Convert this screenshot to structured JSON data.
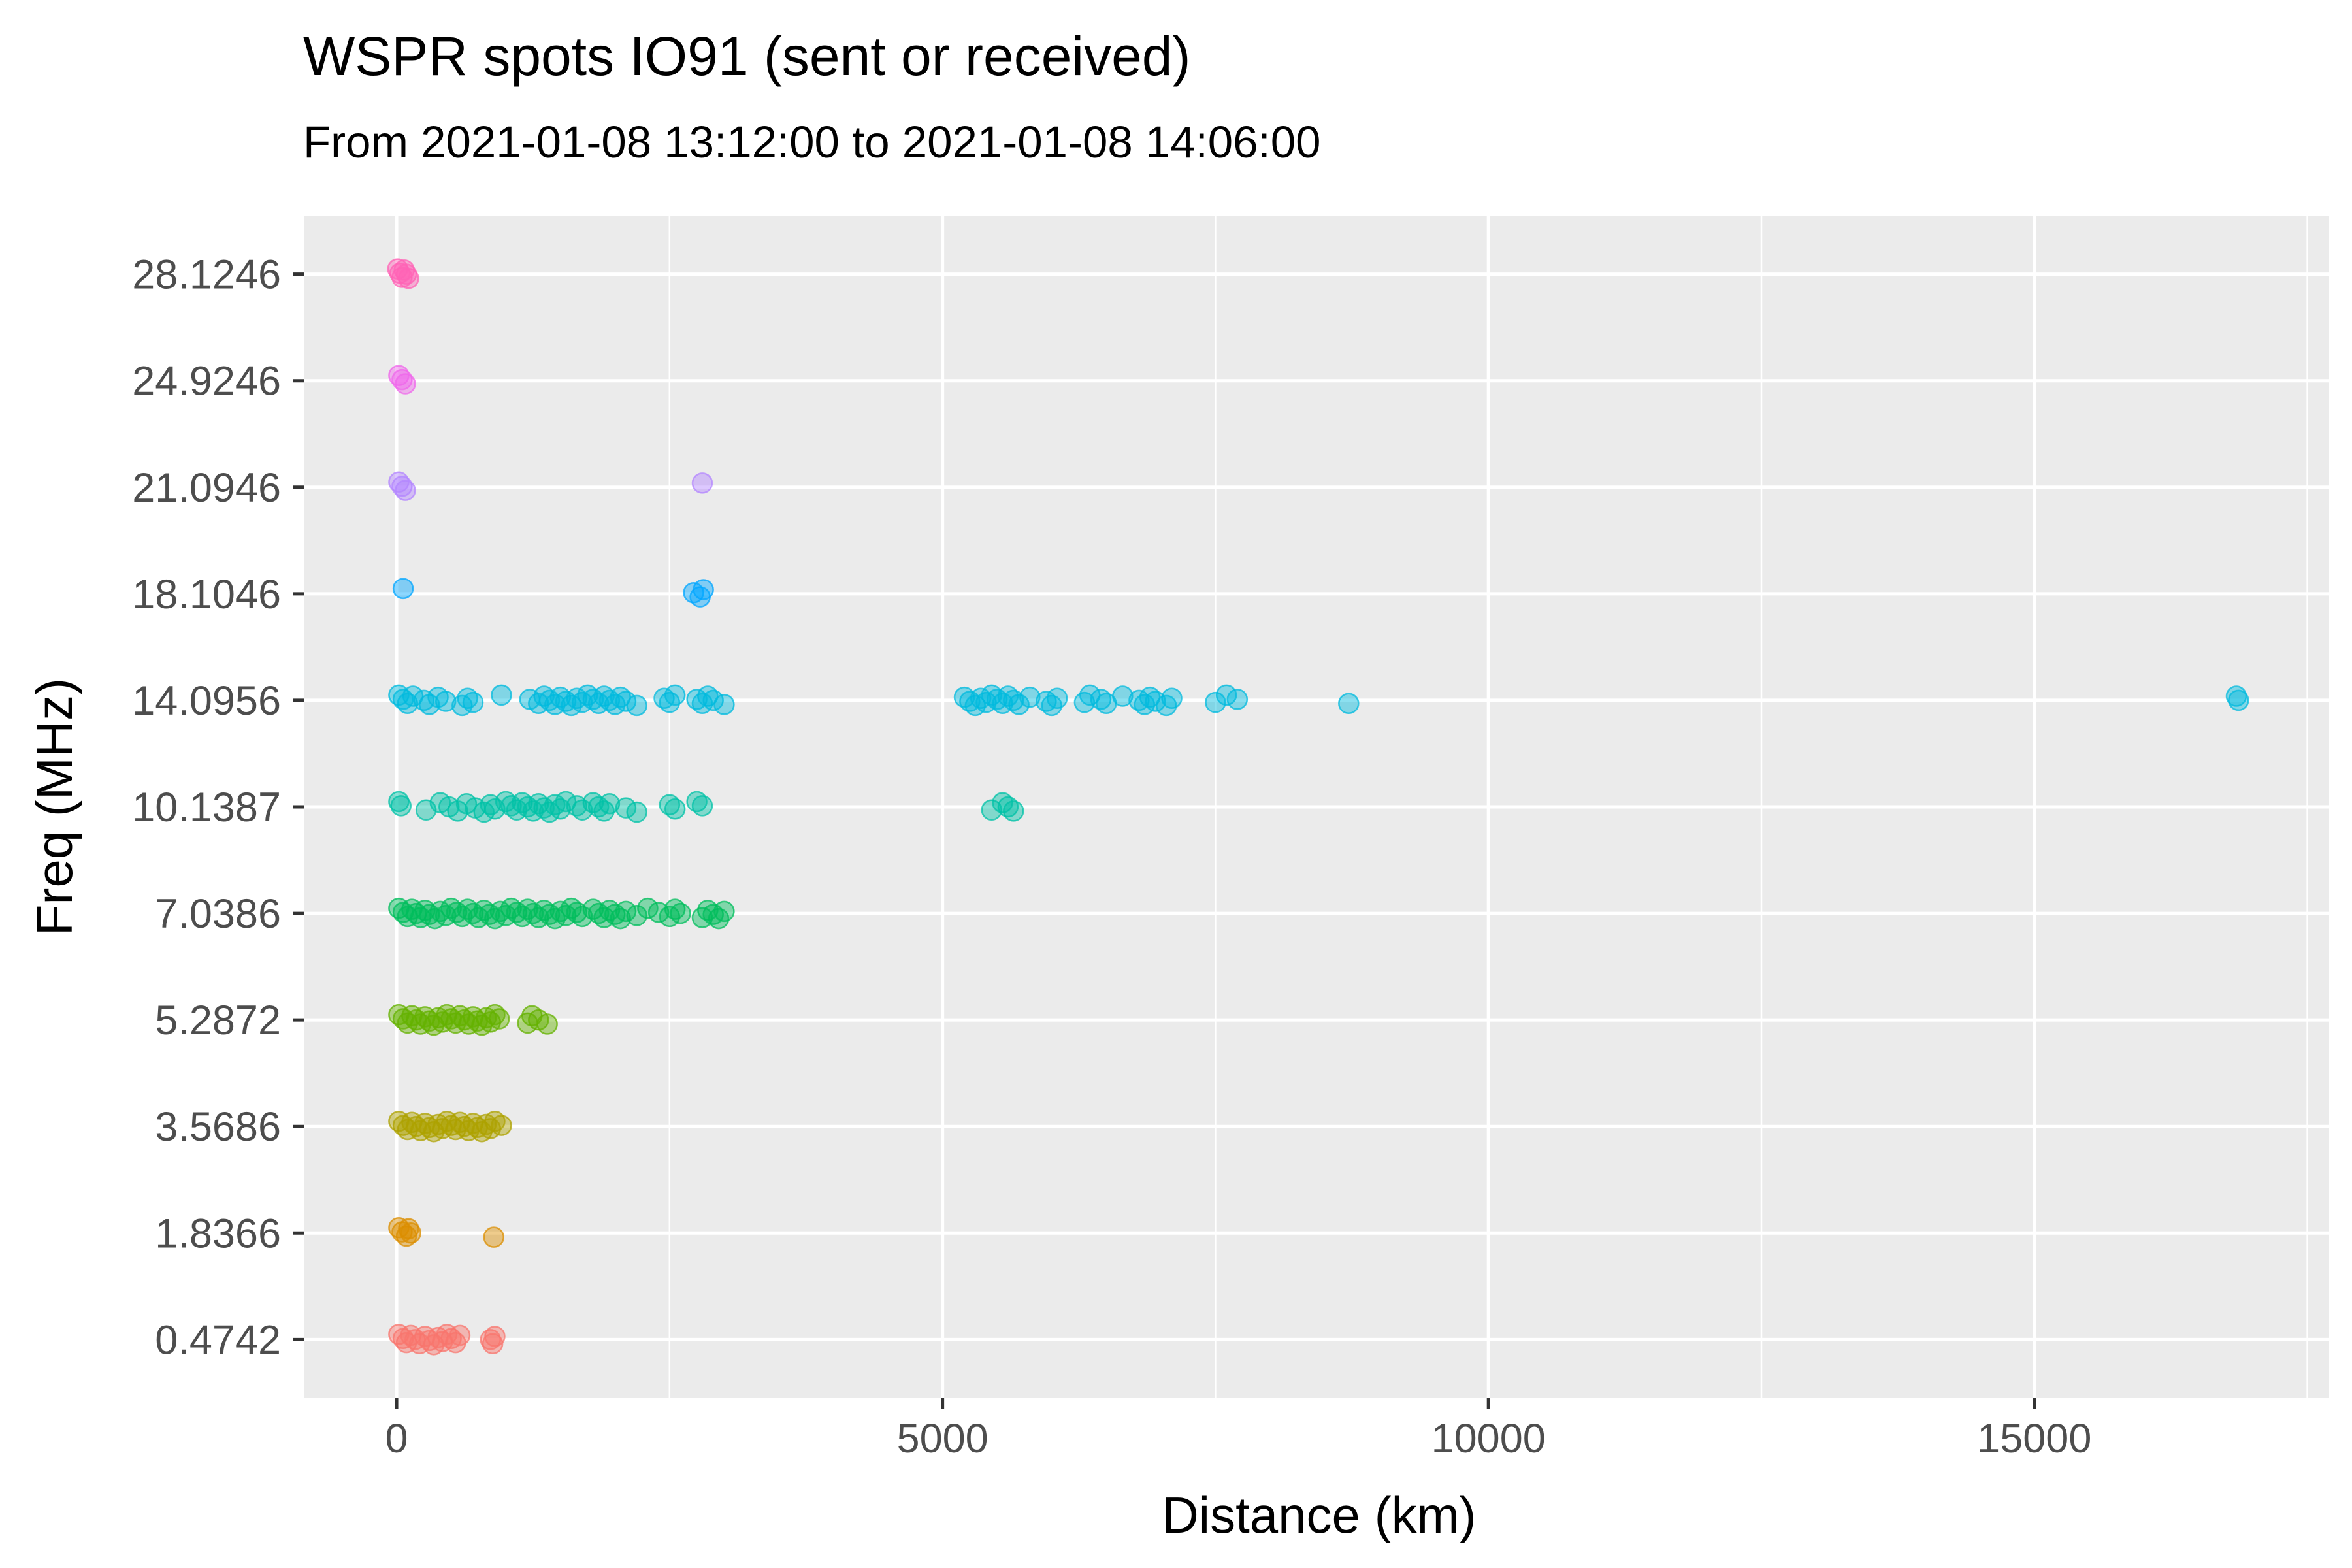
{
  "chart_data": {
    "type": "scatter",
    "title": "WSPR spots IO91 (sent or received)",
    "subtitle": "From 2021-01-08 13:12:00 to 2021-01-08 14:06:00",
    "xlabel": "Distance (km)",
    "ylabel": "Freq (MHz)",
    "xlim": [
      -850,
      17700
    ],
    "x_ticks": [
      0,
      5000,
      10000,
      15000
    ],
    "y_categories": [
      "0.4742",
      "1.8366",
      "3.5686",
      "5.2872",
      "7.0386",
      "10.1387",
      "14.0956",
      "18.1046",
      "21.0946",
      "24.9246",
      "28.1246"
    ],
    "background": "#EBEBEB",
    "grid": true,
    "legend": "none",
    "colors": [
      "#F8766D",
      "#DB8E00",
      "#AEA200",
      "#64B200",
      "#00BD5C",
      "#00C1A7",
      "#00BADE",
      "#00A6FF",
      "#B385FF",
      "#EF67EB",
      "#FF63B6"
    ],
    "series": [
      {
        "category": "0.4742",
        "points": [
          [
            20,
            0.4742
          ],
          [
            60,
            0.4742
          ],
          [
            90,
            0.4742
          ],
          [
            130,
            0.4742
          ],
          [
            170,
            0.4742
          ],
          [
            210,
            0.4742
          ],
          [
            260,
            0.4742
          ],
          [
            300,
            0.4742
          ],
          [
            340,
            0.4742
          ],
          [
            380,
            0.4742
          ],
          [
            420,
            0.4742
          ],
          [
            460,
            0.4742
          ],
          [
            500,
            0.4742
          ],
          [
            540,
            0.4742
          ],
          [
            580,
            0.4742
          ],
          [
            860,
            0.4742
          ],
          [
            880,
            0.4742
          ],
          [
            900,
            0.4742
          ]
        ]
      },
      {
        "category": "1.8366",
        "points": [
          [
            20,
            1.8366
          ],
          [
            50,
            1.8366
          ],
          [
            90,
            1.8366
          ],
          [
            110,
            1.8366
          ],
          [
            130,
            1.8366
          ],
          [
            890,
            1.8366
          ]
        ]
      },
      {
        "category": "3.5686",
        "points": [
          [
            20,
            3.5686
          ],
          [
            60,
            3.5686
          ],
          [
            100,
            3.5686
          ],
          [
            140,
            3.5686
          ],
          [
            180,
            3.5686
          ],
          [
            220,
            3.5686
          ],
          [
            260,
            3.5686
          ],
          [
            300,
            3.5686
          ],
          [
            340,
            3.5686
          ],
          [
            380,
            3.5686
          ],
          [
            420,
            3.5686
          ],
          [
            460,
            3.5686
          ],
          [
            500,
            3.5686
          ],
          [
            540,
            3.5686
          ],
          [
            580,
            3.5686
          ],
          [
            620,
            3.5686
          ],
          [
            660,
            3.5686
          ],
          [
            700,
            3.5686
          ],
          [
            740,
            3.5686
          ],
          [
            780,
            3.5686
          ],
          [
            820,
            3.5686
          ],
          [
            860,
            3.5686
          ],
          [
            900,
            3.5686
          ],
          [
            960,
            3.5686
          ]
        ]
      },
      {
        "category": "5.2872",
        "points": [
          [
            20,
            5.2872
          ],
          [
            60,
            5.2872
          ],
          [
            100,
            5.2872
          ],
          [
            140,
            5.2872
          ],
          [
            180,
            5.2872
          ],
          [
            220,
            5.2872
          ],
          [
            260,
            5.2872
          ],
          [
            300,
            5.2872
          ],
          [
            340,
            5.2872
          ],
          [
            380,
            5.2872
          ],
          [
            420,
            5.2872
          ],
          [
            460,
            5.2872
          ],
          [
            500,
            5.2872
          ],
          [
            540,
            5.2872
          ],
          [
            580,
            5.2872
          ],
          [
            620,
            5.2872
          ],
          [
            660,
            5.2872
          ],
          [
            700,
            5.2872
          ],
          [
            740,
            5.2872
          ],
          [
            780,
            5.2872
          ],
          [
            820,
            5.2872
          ],
          [
            860,
            5.2872
          ],
          [
            900,
            5.2872
          ],
          [
            940,
            5.2872
          ],
          [
            1200,
            5.2872
          ],
          [
            1240,
            5.2872
          ],
          [
            1300,
            5.2872
          ],
          [
            1380,
            5.2872
          ]
        ]
      },
      {
        "category": "7.0386",
        "points": [
          [
            20,
            7.0386
          ],
          [
            60,
            7.0386
          ],
          [
            100,
            7.0386
          ],
          [
            140,
            7.0386
          ],
          [
            180,
            7.0386
          ],
          [
            220,
            7.0386
          ],
          [
            260,
            7.0386
          ],
          [
            300,
            7.0386
          ],
          [
            350,
            7.0386
          ],
          [
            400,
            7.0386
          ],
          [
            450,
            7.0386
          ],
          [
            500,
            7.0386
          ],
          [
            550,
            7.0386
          ],
          [
            600,
            7.0386
          ],
          [
            650,
            7.0386
          ],
          [
            700,
            7.0386
          ],
          [
            750,
            7.0386
          ],
          [
            800,
            7.0386
          ],
          [
            850,
            7.0386
          ],
          [
            900,
            7.0386
          ],
          [
            950,
            7.0386
          ],
          [
            1000,
            7.0386
          ],
          [
            1050,
            7.0386
          ],
          [
            1100,
            7.0386
          ],
          [
            1150,
            7.0386
          ],
          [
            1200,
            7.0386
          ],
          [
            1250,
            7.0386
          ],
          [
            1300,
            7.0386
          ],
          [
            1350,
            7.0386
          ],
          [
            1400,
            7.0386
          ],
          [
            1450,
            7.0386
          ],
          [
            1500,
            7.0386
          ],
          [
            1550,
            7.0386
          ],
          [
            1600,
            7.0386
          ],
          [
            1650,
            7.0386
          ],
          [
            1700,
            7.0386
          ],
          [
            1800,
            7.0386
          ],
          [
            1850,
            7.0386
          ],
          [
            1900,
            7.0386
          ],
          [
            1950,
            7.0386
          ],
          [
            2000,
            7.0386
          ],
          [
            2050,
            7.0386
          ],
          [
            2100,
            7.0386
          ],
          [
            2200,
            7.0386
          ],
          [
            2300,
            7.0386
          ],
          [
            2400,
            7.0386
          ],
          [
            2500,
            7.0386
          ],
          [
            2550,
            7.0386
          ],
          [
            2600,
            7.0386
          ],
          [
            2800,
            7.0386
          ],
          [
            2850,
            7.0386
          ],
          [
            2900,
            7.0386
          ],
          [
            2950,
            7.0386
          ],
          [
            3000,
            7.0386
          ]
        ]
      },
      {
        "category": "10.1387",
        "points": [
          [
            20,
            10.1387
          ],
          [
            40,
            10.1387
          ],
          [
            270,
            10.1387
          ],
          [
            400,
            10.1387
          ],
          [
            480,
            10.1387
          ],
          [
            560,
            10.1387
          ],
          [
            640,
            10.1387
          ],
          [
            720,
            10.1387
          ],
          [
            800,
            10.1387
          ],
          [
            860,
            10.1387
          ],
          [
            900,
            10.1387
          ],
          [
            1000,
            10.1387
          ],
          [
            1050,
            10.1387
          ],
          [
            1100,
            10.1387
          ],
          [
            1150,
            10.1387
          ],
          [
            1200,
            10.1387
          ],
          [
            1250,
            10.1387
          ],
          [
            1300,
            10.1387
          ],
          [
            1350,
            10.1387
          ],
          [
            1400,
            10.1387
          ],
          [
            1450,
            10.1387
          ],
          [
            1500,
            10.1387
          ],
          [
            1550,
            10.1387
          ],
          [
            1650,
            10.1387
          ],
          [
            1700,
            10.1387
          ],
          [
            1800,
            10.1387
          ],
          [
            1850,
            10.1387
          ],
          [
            1900,
            10.1387
          ],
          [
            1950,
            10.1387
          ],
          [
            2100,
            10.1387
          ],
          [
            2200,
            10.1387
          ],
          [
            2500,
            10.1387
          ],
          [
            2550,
            10.1387
          ],
          [
            2750,
            10.1387
          ],
          [
            2800,
            10.1387
          ],
          [
            5450,
            10.1387
          ],
          [
            5550,
            10.1387
          ],
          [
            5600,
            10.1387
          ],
          [
            5650,
            10.1387
          ]
        ]
      },
      {
        "category": "14.0956",
        "points": [
          [
            20,
            14.0956
          ],
          [
            60,
            14.0956
          ],
          [
            100,
            14.0956
          ],
          [
            150,
            14.0956
          ],
          [
            250,
            14.0956
          ],
          [
            300,
            14.0956
          ],
          [
            380,
            14.0956
          ],
          [
            450,
            14.0956
          ],
          [
            600,
            14.0956
          ],
          [
            650,
            14.0956
          ],
          [
            700,
            14.0956
          ],
          [
            960,
            14.0956
          ],
          [
            1220,
            14.0956
          ],
          [
            1300,
            14.0956
          ],
          [
            1350,
            14.0956
          ],
          [
            1400,
            14.0956
          ],
          [
            1450,
            14.0956
          ],
          [
            1500,
            14.0956
          ],
          [
            1550,
            14.0956
          ],
          [
            1600,
            14.0956
          ],
          [
            1650,
            14.0956
          ],
          [
            1700,
            14.0956
          ],
          [
            1750,
            14.0956
          ],
          [
            1800,
            14.0956
          ],
          [
            1850,
            14.0956
          ],
          [
            1900,
            14.0956
          ],
          [
            1950,
            14.0956
          ],
          [
            2000,
            14.0956
          ],
          [
            2050,
            14.0956
          ],
          [
            2100,
            14.0956
          ],
          [
            2200,
            14.0956
          ],
          [
            2450,
            14.0956
          ],
          [
            2500,
            14.0956
          ],
          [
            2550,
            14.0956
          ],
          [
            2750,
            14.0956
          ],
          [
            2800,
            14.0956
          ],
          [
            2850,
            14.0956
          ],
          [
            2900,
            14.0956
          ],
          [
            3000,
            14.0956
          ],
          [
            5200,
            14.0956
          ],
          [
            5250,
            14.0956
          ],
          [
            5300,
            14.0956
          ],
          [
            5350,
            14.0956
          ],
          [
            5400,
            14.0956
          ],
          [
            5450,
            14.0956
          ],
          [
            5500,
            14.0956
          ],
          [
            5550,
            14.0956
          ],
          [
            5600,
            14.0956
          ],
          [
            5650,
            14.0956
          ],
          [
            5700,
            14.0956
          ],
          [
            5800,
            14.0956
          ],
          [
            5950,
            14.0956
          ],
          [
            6000,
            14.0956
          ],
          [
            6050,
            14.0956
          ],
          [
            6300,
            14.0956
          ],
          [
            6350,
            14.0956
          ],
          [
            6450,
            14.0956
          ],
          [
            6500,
            14.0956
          ],
          [
            6650,
            14.0956
          ],
          [
            6800,
            14.0956
          ],
          [
            6850,
            14.0956
          ],
          [
            6900,
            14.0956
          ],
          [
            6950,
            14.0956
          ],
          [
            7050,
            14.0956
          ],
          [
            7100,
            14.0956
          ],
          [
            7500,
            14.0956
          ],
          [
            7600,
            14.0956
          ],
          [
            7700,
            14.0956
          ],
          [
            8720,
            14.0956
          ],
          [
            16850,
            14.0956
          ],
          [
            16870,
            14.0956
          ]
        ]
      },
      {
        "category": "18.1046",
        "points": [
          [
            60,
            18.1046
          ],
          [
            2720,
            18.1046
          ],
          [
            2780,
            18.1046
          ],
          [
            2810,
            18.1046
          ]
        ]
      },
      {
        "category": "21.0946",
        "points": [
          [
            20,
            21.0946
          ],
          [
            50,
            21.0946
          ],
          [
            80,
            21.0946
          ],
          [
            2800,
            21.0946
          ]
        ]
      },
      {
        "category": "24.9246",
        "points": [
          [
            20,
            24.9246
          ],
          [
            50,
            24.9246
          ],
          [
            80,
            24.9246
          ]
        ]
      },
      {
        "category": "28.1246",
        "points": [
          [
            10,
            28.1246
          ],
          [
            30,
            28.1246
          ],
          [
            50,
            28.1246
          ],
          [
            70,
            28.1246
          ],
          [
            90,
            28.1246
          ],
          [
            110,
            28.1246
          ]
        ]
      }
    ]
  }
}
